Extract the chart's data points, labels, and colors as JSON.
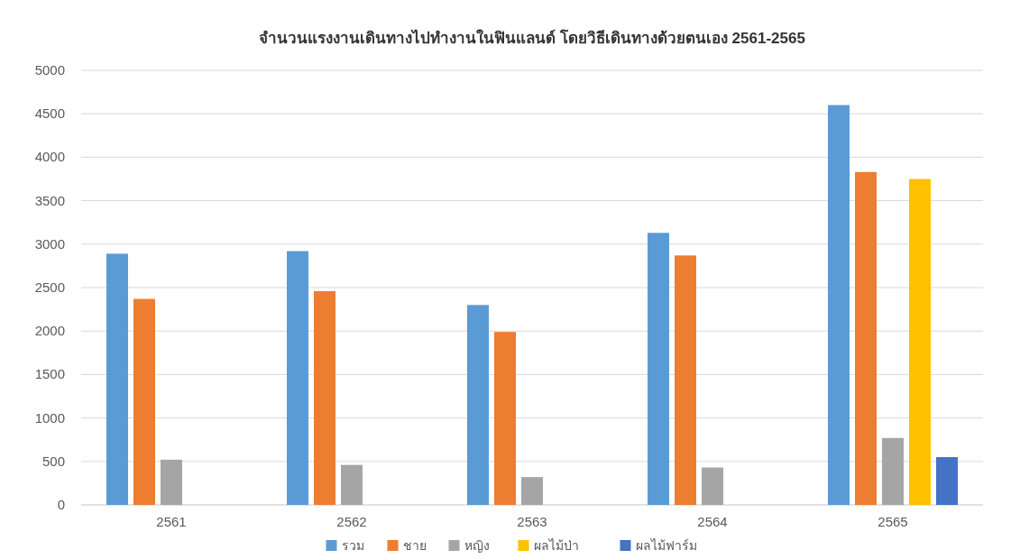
{
  "chart_data": {
    "type": "bar",
    "title": "จำนวนแรงงานเดินทางไปทำงานในฟินแลนด์ โดยวิธีเดินทางด้วยตนเอง 2561-2565",
    "categories": [
      "2561",
      "2562",
      "2563",
      "2564",
      "2565"
    ],
    "series": [
      {
        "name": "รวม",
        "color": "#5b9bd5",
        "values": [
          2890,
          2920,
          2300,
          3130,
          4600
        ]
      },
      {
        "name": "ชาย",
        "color": "#ed7d31",
        "values": [
          2370,
          2460,
          1990,
          2870,
          3830
        ]
      },
      {
        "name": "หญิง",
        "color": "#a5a5a5",
        "values": [
          520,
          460,
          320,
          430,
          770
        ]
      },
      {
        "name": "ผลไม้ป่า",
        "color": "#ffc000",
        "values": [
          null,
          null,
          null,
          null,
          3750
        ]
      },
      {
        "name": "ผลไม้ฟาร์ม",
        "color": "#4472c4",
        "values": [
          null,
          null,
          null,
          null,
          550
        ]
      }
    ],
    "ylim": [
      0,
      5000
    ],
    "yticks": [
      0,
      500,
      1000,
      1500,
      2000,
      2500,
      3000,
      3500,
      4000,
      4500,
      5000
    ],
    "grid": "y",
    "legend": "bottom"
  }
}
